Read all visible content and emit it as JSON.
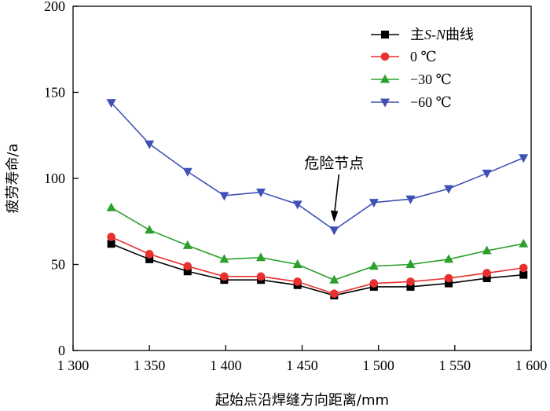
{
  "chart_data": {
    "type": "line",
    "xlabel": "起始点沿焊缝方向距离/mm",
    "ylabel": "疲劳寿命/a",
    "xlim": [
      1300,
      1600
    ],
    "ylim": [
      0,
      200
    ],
    "x_ticks": [
      {
        "value": 1300,
        "label": "1 300"
      },
      {
        "value": 1350,
        "label": "1 350"
      },
      {
        "value": 1400,
        "label": "1 400"
      },
      {
        "value": 1450,
        "label": "1 450"
      },
      {
        "value": 1500,
        "label": "1 500"
      },
      {
        "value": 1550,
        "label": "1 550"
      },
      {
        "value": 1600,
        "label": "1 600"
      }
    ],
    "y_ticks": [
      {
        "value": 0,
        "label": "0"
      },
      {
        "value": 50,
        "label": "50"
      },
      {
        "value": 100,
        "label": "100"
      },
      {
        "value": 150,
        "label": "150"
      },
      {
        "value": 200,
        "label": "200"
      }
    ],
    "x": [
      1325,
      1350,
      1375,
      1399,
      1423,
      1447,
      1471,
      1497,
      1521,
      1546,
      1571,
      1595
    ],
    "series": [
      {
        "name": "主S-N曲线",
        "prefix": "主",
        "italic": "S-N",
        "suffix": "曲线",
        "color": "#000000",
        "marker": "square",
        "values": [
          62,
          53,
          46,
          41,
          41,
          38,
          32,
          37,
          37,
          39,
          42,
          44
        ]
      },
      {
        "name": "0 ℃",
        "color": "#e8312f",
        "marker": "circle",
        "values": [
          66,
          56,
          49,
          43,
          43,
          40,
          33,
          39,
          40,
          42,
          45,
          48
        ]
      },
      {
        "name": "−30 ℃",
        "color": "#2ca02c",
        "marker": "triangle-up",
        "values": [
          83,
          70,
          61,
          53,
          54,
          50,
          41,
          49,
          50,
          53,
          58,
          62
        ]
      },
      {
        "name": "−60 ℃",
        "color": "#3f51b5",
        "marker": "triangle-down",
        "values": [
          144,
          120,
          104,
          90,
          92,
          85,
          70,
          86,
          88,
          94,
          103,
          112
        ]
      }
    ],
    "annotations": [
      {
        "text": "危险节点",
        "x": 1471,
        "y": 70
      }
    ],
    "legend_position": "top-right",
    "grid": false
  }
}
